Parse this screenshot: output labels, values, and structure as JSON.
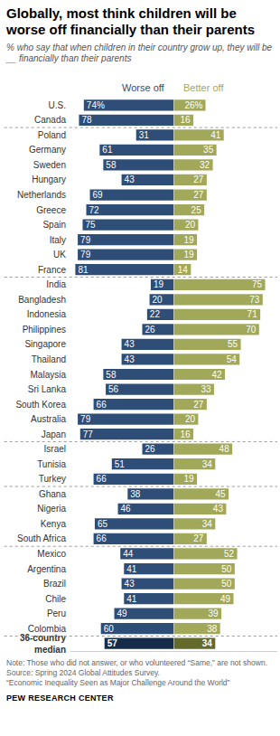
{
  "chart_data": {
    "type": "bar",
    "title": "Globally, most think children will be worse off financially than their parents",
    "subtitle": "% who say that when children in their country grow up, they will be __ financially than their parents",
    "orientation": "horizontal",
    "data_labels": true,
    "tick_labels": false,
    "grid": false,
    "xlim": [
      0,
      85
    ],
    "categories": [
      "U.S.",
      "Canada",
      "Poland",
      "Germany",
      "Sweden",
      "Hungary",
      "Netherlands",
      "Greece",
      "Spain",
      "Italy",
      "UK",
      "France",
      "India",
      "Bangladesh",
      "Indonesia",
      "Philippines",
      "Singapore",
      "Thailand",
      "Malaysia",
      "Sri Lanka",
      "South Korea",
      "Australia",
      "Japan",
      "Israel",
      "Tunisia",
      "Turkey",
      "Ghana",
      "Nigeria",
      "Kenya",
      "South Africa",
      "Mexico",
      "Argentina",
      "Brazil",
      "Chile",
      "Peru",
      "Colombia",
      "36-country median"
    ],
    "series": [
      {
        "name": "Worse off",
        "color": "#2e4d77",
        "colors": [
          "#2e4d77",
          "#2e4d77",
          "#2e4d77",
          "#2e4d77",
          "#2e4d77",
          "#2e4d77",
          "#2e4d77",
          "#2e4d77",
          "#2e4d77",
          "#2e4d77",
          "#2e4d77",
          "#2e4d77",
          "#2e4d77",
          "#2e4d77",
          "#2e4d77",
          "#2e4d77",
          "#2e4d77",
          "#2e4d77",
          "#2e4d77",
          "#2e4d77",
          "#2e4d77",
          "#2e4d77",
          "#2e4d77",
          "#2e4d77",
          "#2e4d77",
          "#2e4d77",
          "#2e4d77",
          "#2e4d77",
          "#2e4d77",
          "#2e4d77",
          "#2e4d77",
          "#2e4d77",
          "#2e4d77",
          "#2e4d77",
          "#2e4d77",
          "#2e4d77",
          "#142b4a"
        ],
        "values": [
          74,
          78,
          31,
          61,
          58,
          43,
          69,
          72,
          75,
          79,
          79,
          81,
          19,
          20,
          22,
          26,
          43,
          43,
          58,
          56,
          66,
          79,
          77,
          26,
          51,
          66,
          38,
          46,
          65,
          66,
          44,
          41,
          43,
          41,
          49,
          60,
          57
        ],
        "value_labels": [
          "74%",
          "78",
          "31",
          "61",
          "58",
          "43",
          "69",
          "72",
          "75",
          "79",
          "79",
          "81",
          "19",
          "20",
          "22",
          "26",
          "43",
          "43",
          "58",
          "56",
          "66",
          "79",
          "77",
          "26",
          "51",
          "66",
          "38",
          "46",
          "65",
          "66",
          "44",
          "41",
          "43",
          "41",
          "49",
          "60",
          "57"
        ]
      },
      {
        "name": "Better off",
        "color": "#a2a85a",
        "colors": [
          "#a2a85a",
          "#a2a85a",
          "#a2a85a",
          "#a2a85a",
          "#a2a85a",
          "#a2a85a",
          "#a2a85a",
          "#a2a85a",
          "#a2a85a",
          "#a2a85a",
          "#a2a85a",
          "#a2a85a",
          "#a2a85a",
          "#a2a85a",
          "#a2a85a",
          "#a2a85a",
          "#a2a85a",
          "#a2a85a",
          "#a2a85a",
          "#a2a85a",
          "#a2a85a",
          "#a2a85a",
          "#a2a85a",
          "#a2a85a",
          "#a2a85a",
          "#a2a85a",
          "#a2a85a",
          "#a2a85a",
          "#a2a85a",
          "#a2a85a",
          "#a2a85a",
          "#a2a85a",
          "#a2a85a",
          "#a2a85a",
          "#a2a85a",
          "#a2a85a",
          "#646a2c"
        ],
        "values": [
          26,
          16,
          41,
          35,
          32,
          27,
          27,
          25,
          20,
          19,
          19,
          14,
          75,
          73,
          71,
          70,
          55,
          54,
          42,
          33,
          27,
          20,
          16,
          48,
          34,
          19,
          45,
          43,
          34,
          27,
          52,
          50,
          50,
          49,
          39,
          38,
          34
        ],
        "value_labels": [
          "26%",
          "16",
          "41",
          "35",
          "32",
          "27",
          "27",
          "25",
          "20",
          "19",
          "19",
          "14",
          "75",
          "73",
          "71",
          "70",
          "55",
          "54",
          "42",
          "33",
          "27",
          "20",
          "16",
          "48",
          "34",
          "19",
          "45",
          "43",
          "34",
          "27",
          "52",
          "50",
          "50",
          "49",
          "39",
          "38",
          "34"
        ]
      }
    ],
    "note": "Note: Those who did not answer, or who volunteered “Same,” are not shown.",
    "source": "Source: Spring 2024 Global Attitudes Survey.",
    "report": "“Economic Inequality Seen as Major Challenge Around the World”",
    "credit": "PEW RESEARCH CENTER"
  }
}
